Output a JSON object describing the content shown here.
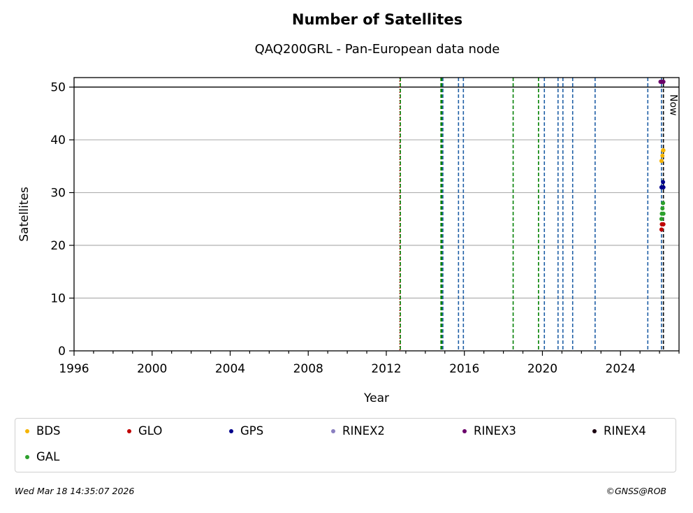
{
  "header": {
    "title": "Number of Satellites",
    "subtitle": "QAQ200GRL - Pan-European data node"
  },
  "chart_data": {
    "type": "scatter",
    "title": "Number of Satellites",
    "subtitle": "QAQ200GRL - Pan-European data node",
    "xlabel": "Year",
    "ylabel": "Satellites",
    "xlim": [
      1996,
      2027.0
    ],
    "ylim": [
      0,
      51.8
    ],
    "x_ticks": [
      1996,
      2000,
      2004,
      2008,
      2012,
      2016,
      2020,
      2024
    ],
    "y_ticks": [
      0,
      10,
      20,
      30,
      40,
      50
    ],
    "grid": "horizontal",
    "reference_line_y": 50,
    "now_label": "Now",
    "now_x": 2026.2,
    "event_lines": [
      {
        "x": 2012.7,
        "color": "#cc0000"
      },
      {
        "x": 2012.72,
        "color": "#008000"
      },
      {
        "x": 2014.8,
        "color": "#008000"
      },
      {
        "x": 2014.85,
        "color": "#008000"
      },
      {
        "x": 2014.9,
        "color": "#1f5fa6"
      },
      {
        "x": 2015.7,
        "color": "#1f5fa6"
      },
      {
        "x": 2015.95,
        "color": "#1f5fa6"
      },
      {
        "x": 2018.5,
        "color": "#008000"
      },
      {
        "x": 2019.8,
        "color": "#008000"
      },
      {
        "x": 2020.1,
        "color": "#1f5fa6"
      },
      {
        "x": 2020.8,
        "color": "#1f5fa6"
      },
      {
        "x": 2021.05,
        "color": "#1f5fa6"
      },
      {
        "x": 2021.55,
        "color": "#1f5fa6"
      },
      {
        "x": 2022.7,
        "color": "#1f5fa6"
      },
      {
        "x": 2025.4,
        "color": "#1f5fa6"
      },
      {
        "x": 2026.1,
        "color": "#1f5fa6"
      },
      {
        "x": 2026.2,
        "color": "#000000"
      }
    ],
    "series": [
      {
        "name": "BDS",
        "color": "#f5b400",
        "points": [
          [
            2026.1,
            36
          ],
          [
            2026.15,
            37
          ],
          [
            2026.18,
            38
          ],
          [
            2026.2,
            38
          ]
        ]
      },
      {
        "name": "GLO",
        "color": "#c00000",
        "points": [
          [
            2026.1,
            23
          ],
          [
            2026.12,
            24
          ],
          [
            2026.15,
            24
          ],
          [
            2026.2,
            24
          ]
        ]
      },
      {
        "name": "GPS",
        "color": "#00008b",
        "points": [
          [
            2026.1,
            31
          ],
          [
            2026.13,
            31
          ],
          [
            2026.18,
            32
          ],
          [
            2026.2,
            31
          ]
        ]
      },
      {
        "name": "RINEX2",
        "color": "#8a7fc0",
        "points": []
      },
      {
        "name": "RINEX3",
        "color": "#6a006a",
        "points": [
          [
            2026.05,
            51
          ],
          [
            2026.1,
            51
          ],
          [
            2026.15,
            51
          ],
          [
            2026.2,
            51
          ]
        ]
      },
      {
        "name": "RINEX4",
        "color": "#1a0010",
        "points": []
      },
      {
        "name": "GAL",
        "color": "#2ca02c",
        "points": [
          [
            2026.1,
            25
          ],
          [
            2026.12,
            26
          ],
          [
            2026.15,
            27
          ],
          [
            2026.18,
            28
          ],
          [
            2026.2,
            26
          ]
        ]
      }
    ]
  },
  "footer": {
    "timestamp": "Wed Mar 18 14:35:07 2026",
    "credit": "©GNSS@ROB"
  }
}
